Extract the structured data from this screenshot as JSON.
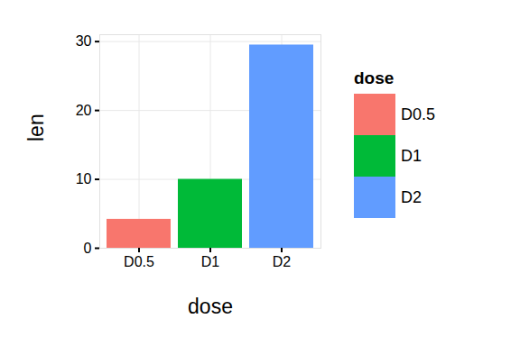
{
  "chart_data": {
    "type": "bar",
    "categories": [
      "D0.5",
      "D1",
      "D2"
    ],
    "values": [
      4.2,
      10.0,
      29.5
    ],
    "colors": [
      "#F8766D",
      "#00BA38",
      "#619CFF"
    ],
    "x_label": "dose",
    "y_label": "len",
    "ylim": [
      0,
      31
    ],
    "yticks": [
      0,
      10,
      20,
      30
    ],
    "grid": true,
    "legend": "right",
    "legend_title": "dose"
  }
}
